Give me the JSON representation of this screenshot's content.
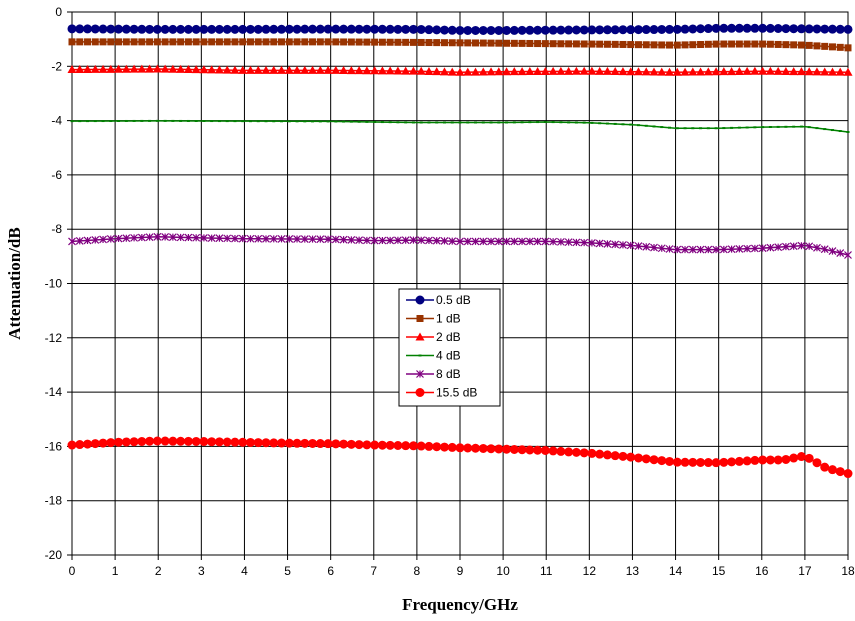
{
  "chart_data": {
    "type": "line",
    "title": "",
    "xlabel": "Frequency/GHz",
    "ylabel": "Attenuation/dB",
    "xlim": [
      0,
      18
    ],
    "ylim": [
      -20,
      0
    ],
    "x_ticks": [
      "0",
      "1",
      "2",
      "3",
      "4",
      "5",
      "6",
      "7",
      "8",
      "9",
      "10",
      "11",
      "12",
      "13",
      "14",
      "15",
      "16",
      "17",
      "18"
    ],
    "y_ticks": [
      "0",
      "-2",
      "-4",
      "-6",
      "-8",
      "-10",
      "-12",
      "-14",
      "-16",
      "-18",
      "-20"
    ],
    "grid": true,
    "legend_position": "center",
    "series": [
      {
        "name": "0.5 dB",
        "color": "#000080",
        "marker": "circle",
        "points": [
          [
            0,
            -0.62
          ],
          [
            2,
            -0.64
          ],
          [
            4,
            -0.64
          ],
          [
            6,
            -0.63
          ],
          [
            8,
            -0.64
          ],
          [
            9,
            -0.68
          ],
          [
            10,
            -0.68
          ],
          [
            12,
            -0.66
          ],
          [
            13,
            -0.65
          ],
          [
            14,
            -0.64
          ],
          [
            15,
            -0.6
          ],
          [
            16,
            -0.6
          ],
          [
            17,
            -0.62
          ],
          [
            18,
            -0.64
          ]
        ]
      },
      {
        "name": "1 dB",
        "color": "#993300",
        "marker": "square",
        "points": [
          [
            0,
            -1.1
          ],
          [
            2,
            -1.1
          ],
          [
            4,
            -1.1
          ],
          [
            6,
            -1.1
          ],
          [
            8,
            -1.12
          ],
          [
            10,
            -1.15
          ],
          [
            12,
            -1.18
          ],
          [
            13,
            -1.2
          ],
          [
            14,
            -1.22
          ],
          [
            15,
            -1.18
          ],
          [
            16,
            -1.18
          ],
          [
            17,
            -1.22
          ],
          [
            18,
            -1.32
          ]
        ]
      },
      {
        "name": "2 dB",
        "color": "#ff0000",
        "marker": "triangle",
        "points": [
          [
            0,
            -2.12
          ],
          [
            2,
            -2.1
          ],
          [
            4,
            -2.15
          ],
          [
            6,
            -2.15
          ],
          [
            8,
            -2.18
          ],
          [
            9,
            -2.22
          ],
          [
            10,
            -2.2
          ],
          [
            12,
            -2.18
          ],
          [
            13,
            -2.2
          ],
          [
            14,
            -2.22
          ],
          [
            15,
            -2.2
          ],
          [
            16,
            -2.18
          ],
          [
            17,
            -2.2
          ],
          [
            18,
            -2.22
          ]
        ]
      },
      {
        "name": "4 dB",
        "color": "#008000",
        "marker": "dash",
        "points": [
          [
            0,
            -4.02
          ],
          [
            2,
            -4.01
          ],
          [
            4,
            -4.02
          ],
          [
            6,
            -4.03
          ],
          [
            7,
            -4.05
          ],
          [
            8,
            -4.07
          ],
          [
            10,
            -4.07
          ],
          [
            11,
            -4.05
          ],
          [
            12,
            -4.08
          ],
          [
            13,
            -4.15
          ],
          [
            14,
            -4.28
          ],
          [
            15,
            -4.28
          ],
          [
            16,
            -4.24
          ],
          [
            17,
            -4.22
          ],
          [
            18,
            -4.42
          ]
        ]
      },
      {
        "name": "8 dB",
        "color": "#800080",
        "marker": "star",
        "points": [
          [
            0,
            -8.45
          ],
          [
            1,
            -8.35
          ],
          [
            2,
            -8.28
          ],
          [
            3,
            -8.32
          ],
          [
            4,
            -8.35
          ],
          [
            6,
            -8.37
          ],
          [
            7,
            -8.42
          ],
          [
            8,
            -8.4
          ],
          [
            9,
            -8.45
          ],
          [
            10,
            -8.45
          ],
          [
            11,
            -8.45
          ],
          [
            12,
            -8.5
          ],
          [
            13,
            -8.6
          ],
          [
            14,
            -8.75
          ],
          [
            15,
            -8.75
          ],
          [
            16,
            -8.7
          ],
          [
            17,
            -8.6
          ],
          [
            17.5,
            -8.75
          ],
          [
            18,
            -8.95
          ]
        ]
      },
      {
        "name": "15.5 dB",
        "color": "#ff0000",
        "marker": "circle",
        "points": [
          [
            0,
            -15.95
          ],
          [
            1,
            -15.85
          ],
          [
            2,
            -15.8
          ],
          [
            3,
            -15.82
          ],
          [
            4,
            -15.85
          ],
          [
            5,
            -15.88
          ],
          [
            6,
            -15.9
          ],
          [
            7,
            -15.95
          ],
          [
            8,
            -15.98
          ],
          [
            9,
            -16.05
          ],
          [
            10,
            -16.1
          ],
          [
            11,
            -16.15
          ],
          [
            12,
            -16.25
          ],
          [
            13,
            -16.4
          ],
          [
            14,
            -16.58
          ],
          [
            15,
            -16.6
          ],
          [
            15.5,
            -16.55
          ],
          [
            16,
            -16.5
          ],
          [
            16.5,
            -16.5
          ],
          [
            17,
            -16.35
          ],
          [
            17.5,
            -16.8
          ],
          [
            18,
            -17.0
          ]
        ]
      }
    ]
  }
}
